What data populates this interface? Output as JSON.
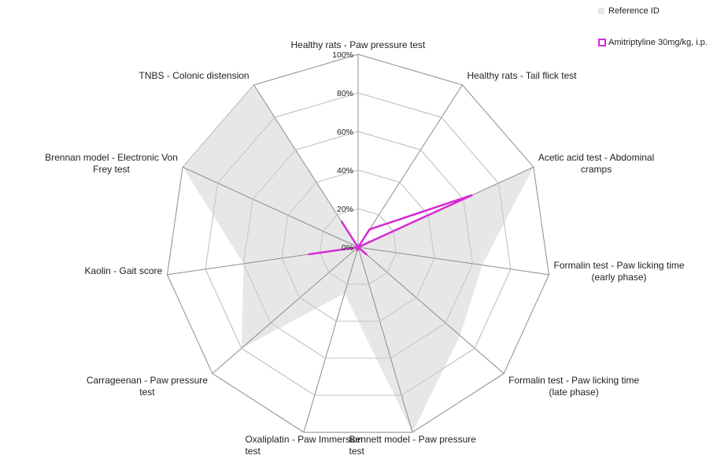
{
  "chart_data": {
    "type": "radar",
    "categories": [
      "Healthy rats - Paw pressure test",
      "Healthy rats - Tail flick test",
      "Acetic acid test - Abdominal cramps",
      "Formalin test - Paw licking time (early phase)",
      "Formalin test - Paw licking time (late phase)",
      "Bennett model - Paw pressure test",
      "Oxaliplatin - Paw Immersion test",
      "Carrageenan - Paw pressure test",
      "Kaolin - Gait score",
      "Brennan model - Electronic Von Frey test",
      "TNBS - Colonic distension"
    ],
    "category_labels": [
      "Healthy rats - Paw pressure test",
      "Healthy rats - Tail flick test",
      "Acetic acid test - Abdominal\ncramps",
      "Formalin test - Paw licking time\n(early phase)",
      "Formalin test - Paw licking time\n(late phase)",
      "Bennett model - Paw pressure\ntest",
      "Oxaliplatin - Paw Immersion\ntest",
      "Carrageenan - Paw pressure\ntest",
      "Kaolin - Gait score",
      "Brennan model - Electronic Von\nFrey test",
      "TNBS - Colonic distension"
    ],
    "series": [
      {
        "name": "Reference ID",
        "style": "filled",
        "color": "#e6e6e6",
        "values": [
          0,
          0,
          100,
          65,
          70,
          100,
          25,
          80,
          60,
          100,
          100
        ]
      },
      {
        "name": "Amitriptyline 30mg/kg, i.p.",
        "style": "line",
        "color": "#d62ad6",
        "values": [
          0,
          11,
          65,
          0,
          6,
          0,
          2,
          0,
          26,
          0,
          16
        ]
      }
    ],
    "r_ticks": [
      "0%",
      "20%",
      "40%",
      "60%",
      "80%",
      "100%"
    ],
    "r_range": [
      0,
      100
    ],
    "legend_position": "top-right"
  }
}
